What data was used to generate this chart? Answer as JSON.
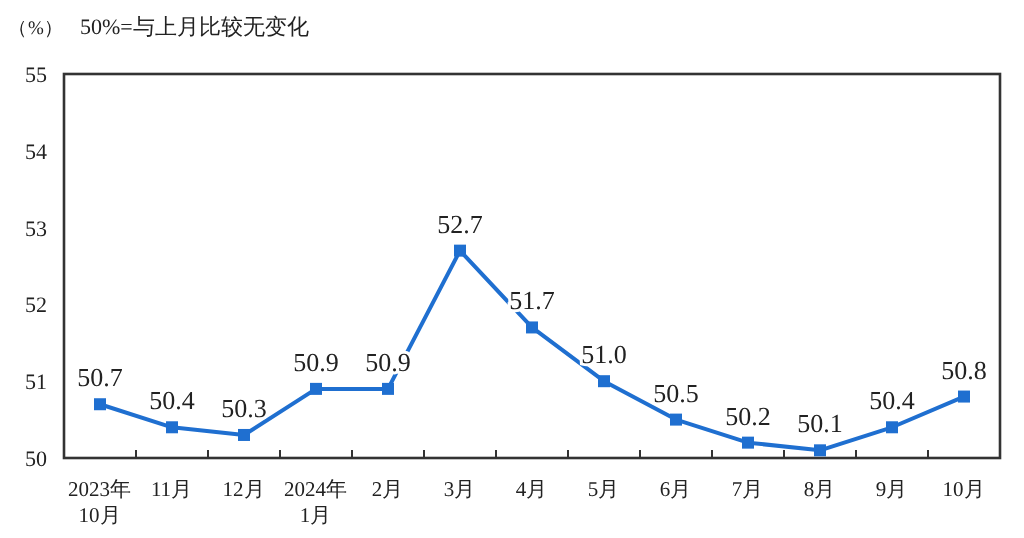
{
  "chart_data": {
    "type": "line",
    "ylabel": "（%）",
    "annotations": [
      "50%=与上月比较无变化"
    ],
    "categories": [
      "2023年\n10月",
      "11月",
      "12月",
      "2024年\n1月",
      "2月",
      "3月",
      "4月",
      "5月",
      "6月",
      "7月",
      "8月",
      "9月",
      "10月"
    ],
    "values": [
      50.7,
      50.4,
      50.3,
      50.9,
      50.9,
      52.7,
      51.7,
      51.0,
      50.5,
      50.2,
      50.1,
      50.4,
      50.8
    ],
    "value_labels": [
      "50.7",
      "50.4",
      "50.3",
      "50.9",
      "50.9",
      "52.7",
      "51.7",
      "51.0",
      "50.5",
      "50.2",
      "50.1",
      "50.4",
      "50.8"
    ],
    "color": "#1f6fd0",
    "marker": "square",
    "line_style": "solid",
    "ylim": [
      50,
      55
    ],
    "yticks": [
      50,
      51,
      52,
      53,
      54,
      55
    ],
    "grid": false
  }
}
